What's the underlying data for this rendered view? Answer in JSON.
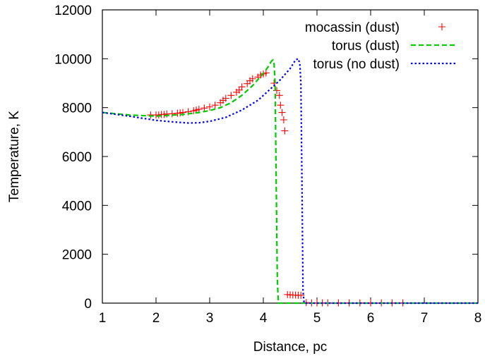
{
  "chart_data": {
    "type": "line",
    "xlabel": "Distance, pc",
    "ylabel": "Temperature, K",
    "xlim": [
      1,
      8
    ],
    "ylim": [
      0,
      12000
    ],
    "xticks": [
      1,
      2,
      3,
      4,
      5,
      6,
      7,
      8
    ],
    "yticks": [
      0,
      2000,
      4000,
      6000,
      8000,
      10000,
      12000
    ],
    "grid": false,
    "legend_position": "top-right",
    "series": [
      {
        "name": "mocassin (dust)",
        "style": "points-plus",
        "color": "#ff0000",
        "points": [
          [
            1.9,
            7700
          ],
          [
            2.0,
            7700
          ],
          [
            2.05,
            7700
          ],
          [
            2.1,
            7720
          ],
          [
            2.15,
            7720
          ],
          [
            2.2,
            7740
          ],
          [
            2.3,
            7750
          ],
          [
            2.4,
            7770
          ],
          [
            2.45,
            7780
          ],
          [
            2.5,
            7800
          ],
          [
            2.6,
            7830
          ],
          [
            2.7,
            7870
          ],
          [
            2.75,
            7900
          ],
          [
            2.8,
            7930
          ],
          [
            2.9,
            7980
          ],
          [
            3.0,
            8030
          ],
          [
            3.1,
            8100
          ],
          [
            3.2,
            8200
          ],
          [
            3.25,
            8300
          ],
          [
            3.3,
            8380
          ],
          [
            3.4,
            8500
          ],
          [
            3.5,
            8630
          ],
          [
            3.55,
            8720
          ],
          [
            3.6,
            8850
          ],
          [
            3.7,
            8980
          ],
          [
            3.75,
            9100
          ],
          [
            3.8,
            9180
          ],
          [
            3.9,
            9250
          ],
          [
            3.95,
            9330
          ],
          [
            4.0,
            9380
          ],
          [
            4.05,
            9420
          ],
          [
            4.2,
            9000
          ],
          [
            4.25,
            8700
          ],
          [
            4.3,
            8500
          ],
          [
            4.32,
            8100
          ],
          [
            4.35,
            7800
          ],
          [
            4.38,
            7500
          ],
          [
            4.4,
            7050
          ],
          [
            4.45,
            350
          ],
          [
            4.5,
            340
          ],
          [
            4.55,
            330
          ],
          [
            4.6,
            330
          ],
          [
            4.65,
            320
          ],
          [
            4.7,
            320
          ],
          [
            4.8,
            20
          ],
          [
            4.9,
            10
          ],
          [
            5.0,
            10
          ],
          [
            5.1,
            10
          ],
          [
            5.2,
            10
          ],
          [
            5.4,
            10
          ],
          [
            5.6,
            10
          ],
          [
            5.8,
            10
          ],
          [
            6.0,
            10
          ],
          [
            6.2,
            10
          ],
          [
            6.4,
            10
          ],
          [
            6.6,
            10
          ]
        ]
      },
      {
        "name": "torus (dust)",
        "style": "dashed",
        "color": "#00cc00",
        "points": [
          [
            1.0,
            7800
          ],
          [
            1.5,
            7700
          ],
          [
            2.0,
            7650
          ],
          [
            2.5,
            7720
          ],
          [
            2.8,
            7800
          ],
          [
            3.0,
            7880
          ],
          [
            3.2,
            8000
          ],
          [
            3.4,
            8200
          ],
          [
            3.6,
            8500
          ],
          [
            3.8,
            8900
          ],
          [
            4.0,
            9400
          ],
          [
            4.1,
            9700
          ],
          [
            4.15,
            9900
          ],
          [
            4.18,
            9950
          ],
          [
            4.2,
            9800
          ],
          [
            4.22,
            9000
          ],
          [
            4.24,
            5000
          ],
          [
            4.26,
            1000
          ],
          [
            4.28,
            0
          ],
          [
            8.0,
            0
          ]
        ]
      },
      {
        "name": "torus (no dust)",
        "style": "dotted",
        "color": "#0000ff",
        "points": [
          [
            1.0,
            7800
          ],
          [
            1.5,
            7650
          ],
          [
            2.0,
            7480
          ],
          [
            2.3,
            7420
          ],
          [
            2.6,
            7370
          ],
          [
            2.8,
            7380
          ],
          [
            3.0,
            7440
          ],
          [
            3.3,
            7600
          ],
          [
            3.6,
            7900
          ],
          [
            3.9,
            8300
          ],
          [
            4.1,
            8700
          ],
          [
            4.3,
            9100
          ],
          [
            4.5,
            9600
          ],
          [
            4.6,
            9950
          ],
          [
            4.65,
            10000
          ],
          [
            4.68,
            9800
          ],
          [
            4.7,
            9000
          ],
          [
            4.72,
            5000
          ],
          [
            4.74,
            500
          ],
          [
            4.76,
            0
          ],
          [
            8.0,
            0
          ]
        ]
      }
    ]
  }
}
